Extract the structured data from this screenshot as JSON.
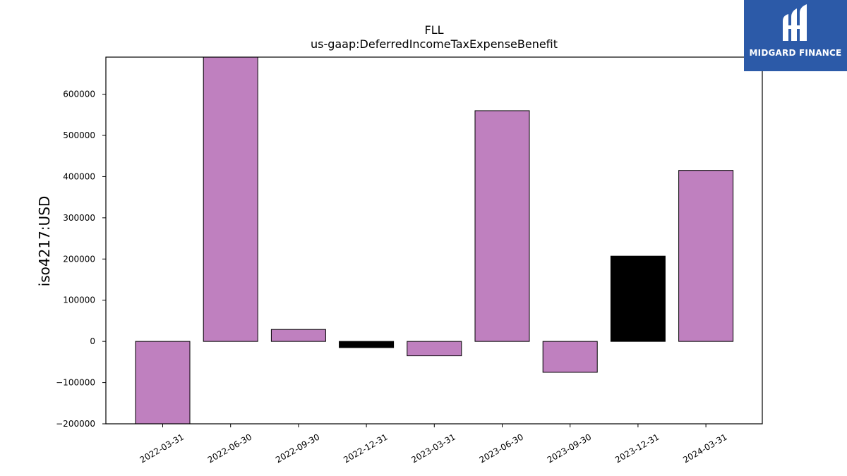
{
  "chart_data": {
    "type": "bar",
    "title": "FLL",
    "subtitle": "us-gaap:DeferredIncomeTaxExpenseBenefit",
    "xlabel": "",
    "ylabel": "iso4217:USD",
    "categories": [
      "2022-03-31",
      "2022-06-30",
      "2022-09-30",
      "2022-12-31",
      "2023-03-31",
      "2023-06-30",
      "2023-09-30",
      "2023-12-31",
      "2024-03-31"
    ],
    "values": [
      -200000,
      690000,
      29000,
      -15000,
      -35000,
      560000,
      -75000,
      207000,
      415000
    ],
    "bar_colors": [
      "#bf80bf",
      "#bf80bf",
      "#bf80bf",
      "#000000",
      "#bf80bf",
      "#bf80bf",
      "#bf80bf",
      "#000000",
      "#bf80bf"
    ],
    "ylim": [
      -200000,
      690000
    ],
    "yticks": [
      -200000,
      -100000,
      0,
      100000,
      200000,
      300000,
      400000,
      500000,
      600000
    ],
    "ytick_labels": [
      "−200000",
      "−100000",
      "0",
      "100000",
      "200000",
      "300000",
      "400000",
      "500000",
      "600000"
    ],
    "grid": false,
    "legend": "none"
  },
  "logo": {
    "text": "MIDGARD FINANCE",
    "background": "#2c5aa8",
    "icon": "midgard-logo-icon"
  }
}
